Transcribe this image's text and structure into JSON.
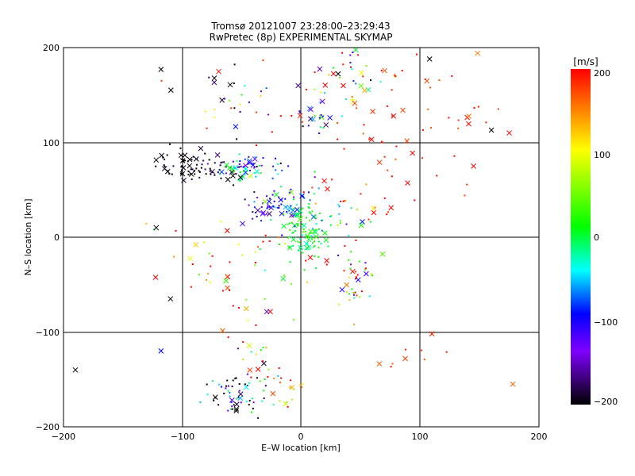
{
  "chart_data": {
    "type": "scatter",
    "title": "Tromsø 20121007 23:28:00–23:29:43",
    "subtitle": "RwPretec (8p) EXPERIMENTAL SKYMAP",
    "xlabel": "E–W location [km]",
    "ylabel": "N–S location [km]",
    "xlim": [
      -200,
      200
    ],
    "ylim": [
      -200,
      200
    ],
    "xticks": [
      "−200",
      "−100",
      "0",
      "100",
      "200"
    ],
    "yticks": [
      "−200",
      "−100",
      "0",
      "100",
      "200"
    ],
    "grid": true,
    "colorbar": {
      "label": "[m/s]",
      "range": [
        -200,
        200
      ],
      "ticks": [
        "−200",
        "−100",
        "0",
        "100",
        "200"
      ],
      "stops": [
        "#000000",
        "#8000ff",
        "#0000ff",
        "#00ffff",
        "#00ff00",
        "#ffff00",
        "#ff0000"
      ]
    },
    "markers": {
      "dot": "small point",
      "cross": "x"
    },
    "clusters": [
      {
        "x": -100,
        "y": 75,
        "sx": 12,
        "sy": 9,
        "n": 45,
        "v": -200,
        "sv": 10
      },
      {
        "x": -75,
        "y": 70,
        "sx": 14,
        "sy": 8,
        "n": 40,
        "v": -190,
        "sv": 20
      },
      {
        "x": -50,
        "y": 72,
        "sx": 8,
        "sy": 6,
        "n": 35,
        "v": -20,
        "sv": 40
      },
      {
        "x": -40,
        "y": 78,
        "sx": 12,
        "sy": 8,
        "n": 30,
        "v": -120,
        "sv": 60
      },
      {
        "x": -25,
        "y": 32,
        "sx": 12,
        "sy": 8,
        "n": 45,
        "v": -115,
        "sv": 40
      },
      {
        "x": -5,
        "y": 35,
        "sx": 14,
        "sy": 14,
        "n": 40,
        "v": -40,
        "sv": 50
      },
      {
        "x": 0,
        "y": 2,
        "sx": 9,
        "sy": 14,
        "n": 80,
        "v": 0,
        "sv": 25
      },
      {
        "x": 20,
        "y": 20,
        "sx": 18,
        "sy": 12,
        "n": 30,
        "v": -20,
        "sv": 40
      },
      {
        "x": 15,
        "y": 130,
        "sx": 8,
        "sy": 12,
        "n": 20,
        "v": -80,
        "sv": 60
      },
      {
        "x": 32,
        "y": 175,
        "sx": 18,
        "sy": 18,
        "n": 35,
        "v": 20,
        "sv": 130
      },
      {
        "x": 45,
        "y": -45,
        "sx": 7,
        "sy": 18,
        "n": 40,
        "v": 60,
        "sv": 150
      },
      {
        "x": 60,
        "y": 150,
        "sx": 50,
        "sy": 35,
        "n": 40,
        "v": 190,
        "sv": 20
      },
      {
        "x": 90,
        "y": 80,
        "sx": 40,
        "sy": 30,
        "n": 25,
        "v": 195,
        "sv": 15
      },
      {
        "x": 45,
        "y": 40,
        "sx": 25,
        "sy": 15,
        "n": 20,
        "v": 180,
        "sv": 40
      },
      {
        "x": -55,
        "y": -165,
        "sx": 12,
        "sy": 12,
        "n": 55,
        "v": -150,
        "sv": 90
      },
      {
        "x": -20,
        "y": -160,
        "sx": 15,
        "sy": 12,
        "n": 25,
        "v": 100,
        "sv": 120
      },
      {
        "x": -40,
        "y": -110,
        "sx": 20,
        "sy": 30,
        "n": 25,
        "v": 80,
        "sv": 160
      },
      {
        "x": -75,
        "y": -30,
        "sx": 20,
        "sy": 25,
        "n": 25,
        "v": 150,
        "sv": 90
      },
      {
        "x": -60,
        "y": 140,
        "sx": 25,
        "sy": 25,
        "n": 30,
        "v": -100,
        "sv": 150
      },
      {
        "x": -35,
        "y": -20,
        "sx": 30,
        "sy": 20,
        "n": 25,
        "v": 140,
        "sv": 100
      },
      {
        "x": 150,
        "y": 120,
        "sx": 15,
        "sy": 10,
        "n": 10,
        "v": 190,
        "sv": 20
      },
      {
        "x": 85,
        "y": -130,
        "sx": 15,
        "sy": 10,
        "n": 8,
        "v": 190,
        "sv": 20
      }
    ],
    "isolated_points": [
      {
        "x": -190,
        "y": -140,
        "v": -200,
        "m": "x"
      },
      {
        "x": -118,
        "y": 177,
        "v": -200,
        "m": "x"
      },
      {
        "x": -110,
        "y": -65,
        "v": -200,
        "m": "x"
      },
      {
        "x": -122,
        "y": 10,
        "v": -200,
        "m": "x"
      },
      {
        "x": -118,
        "y": -120,
        "v": -90,
        "m": "x"
      },
      {
        "x": 108,
        "y": 188,
        "v": -200,
        "m": "x"
      },
      {
        "x": 178,
        "y": -155,
        "v": 160,
        "m": "x"
      },
      {
        "x": 110,
        "y": -102,
        "v": 190,
        "m": "x"
      },
      {
        "x": 160,
        "y": 113,
        "v": -200,
        "m": "x"
      },
      {
        "x": 175,
        "y": 110,
        "v": 200,
        "m": "x"
      },
      {
        "x": 145,
        "y": 75,
        "v": 200,
        "m": "x"
      }
    ]
  }
}
